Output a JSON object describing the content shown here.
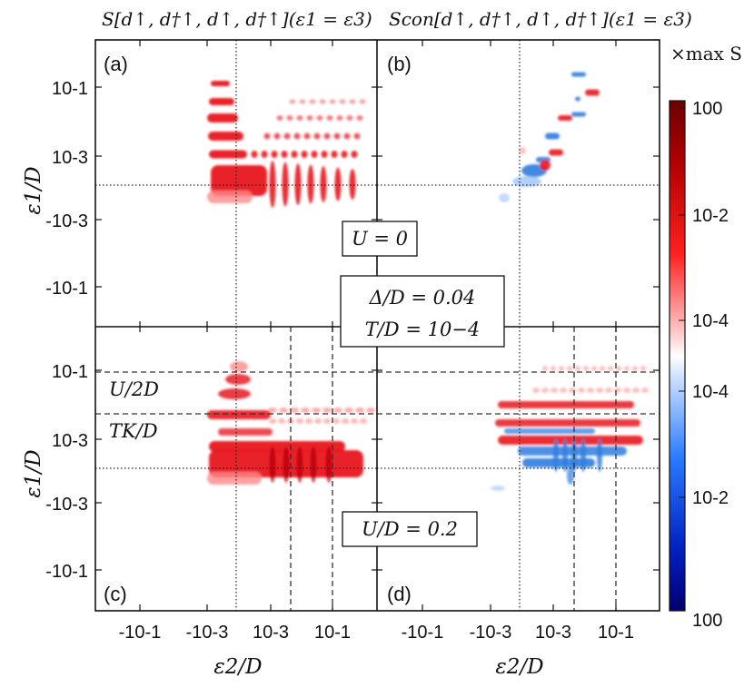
{
  "figure": {
    "titles": {
      "left": "S[d↑, d†↑, d↑, d†↑](ε1 = ε3)",
      "right": "Scon[d↑, d†↑, d↑, d†↑](ε1 = ε3)"
    },
    "ylabel": "ε1/D",
    "xlabel": "ε2/D",
    "xticks": [
      "-10-1",
      "-10-3",
      "10-3",
      "10-1"
    ],
    "yticks": [
      "10-1",
      "10-3",
      "-10-3",
      "-10-1"
    ],
    "panel_labels": [
      "(a)",
      "(b)",
      "(c)",
      "(d)"
    ],
    "boxes": {
      "u0": "U = 0",
      "delta": "Δ/D = 0.04",
      "temp": "T/D = 10−4",
      "u02": "U/D = 0.2"
    },
    "annotations": {
      "u2d": "U/2D",
      "tk": "TK/D"
    },
    "colorbar": {
      "label": "×max S",
      "ticks": [
        "100",
        "10-2",
        "10-4",
        "10-4",
        "10-2",
        "100"
      ],
      "colors": {
        "dark_red": "#800000",
        "red": "#ff1a1a",
        "white": "#ffffff",
        "blue": "#1a6cff",
        "dark_blue": "#00008b"
      }
    }
  },
  "chart_data": [
    {
      "panel": "(a)",
      "type": "heatmap",
      "title": "S[d↑, d†↑, d↑, d†↑](ε1 = ε3)",
      "ylabel": "ε1/D",
      "sign": "positive",
      "scale": "symmetric-log",
      "note": "red horizontal stripes at ε1 ≈ 10^-1, 10^-2, 10^-3 and a broad band near 10^-4; vertical stripes for ε2 between 10^-3 and 10^-1"
    },
    {
      "panel": "(b)",
      "type": "heatmap",
      "title": "Scon[d↑, d†↑, d↑, d†↑](ε1 = ε3)",
      "sign": "mixed",
      "note": "sparse diagonal features along ε1 ≈ ε2, blue patch near ε ≈ 10^-4"
    },
    {
      "panel": "(c)",
      "type": "heatmap",
      "ylabel": "ε1/D",
      "xlabel": "ε2/D",
      "sign": "positive",
      "reference_lines": {
        "U/2D": 0.1,
        "TK/D": 0.005
      }
    },
    {
      "panel": "(d)",
      "type": "heatmap",
      "xlabel": "ε2/D",
      "sign": "mixed",
      "reference_lines": {
        "U/2D": 0.1,
        "TK/D": 0.005
      }
    }
  ]
}
